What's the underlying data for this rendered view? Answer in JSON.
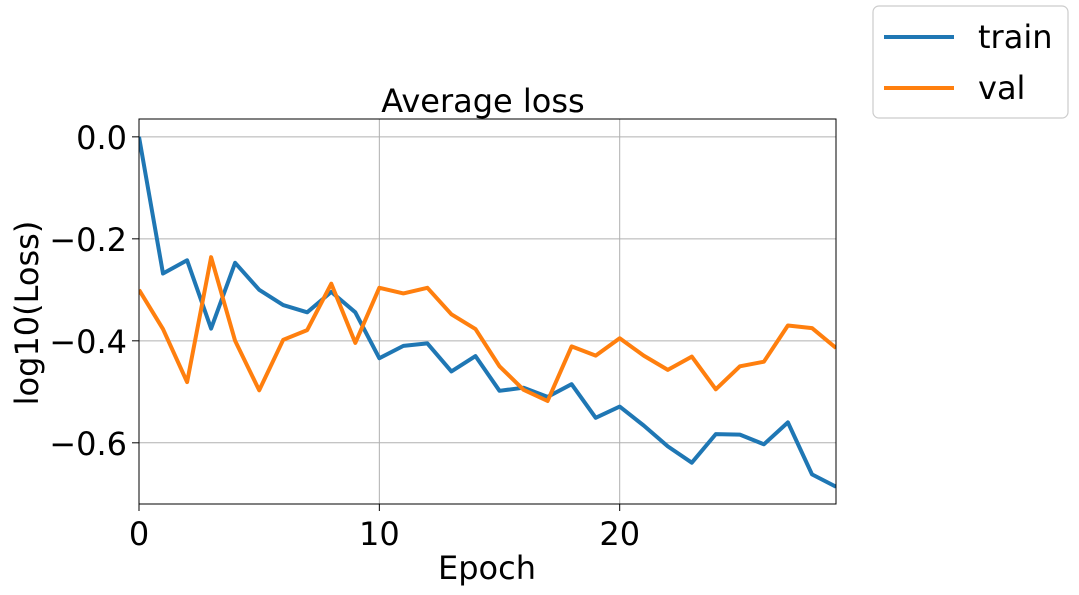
{
  "chart_data": {
    "type": "line",
    "title": "Average loss",
    "xlabel": "Epoch",
    "ylabel": "log10(Loss)",
    "xlim": [
      0,
      29
    ],
    "ylim": [
      -0.72,
      0.035
    ],
    "xticks": [
      0,
      10,
      20
    ],
    "yticks": [
      0.0,
      -0.2,
      -0.4,
      -0.6
    ],
    "xtick_labels": [
      "0",
      "10",
      "20"
    ],
    "ytick_labels": [
      "0.0",
      "−0.2",
      "−0.4",
      "−0.6"
    ],
    "grid": true,
    "legend_position": "outside-top-right",
    "x": [
      0,
      1,
      2,
      3,
      4,
      5,
      6,
      7,
      8,
      9,
      10,
      11,
      12,
      13,
      14,
      15,
      16,
      17,
      18,
      19,
      20,
      21,
      22,
      23,
      24,
      25,
      26,
      27,
      28,
      29
    ],
    "series": [
      {
        "name": "train",
        "color": "#1f77b4",
        "values": [
          0.0,
          -0.268,
          -0.242,
          -0.376,
          -0.247,
          -0.3,
          -0.33,
          -0.344,
          -0.304,
          -0.344,
          -0.434,
          -0.41,
          -0.405,
          -0.46,
          -0.43,
          -0.498,
          -0.492,
          -0.51,
          -0.485,
          -0.551,
          -0.529,
          -0.566,
          -0.607,
          -0.639,
          -0.583,
          -0.584,
          -0.603,
          -0.56,
          -0.662,
          -0.686
        ]
      },
      {
        "name": "val",
        "color": "#ff7f0e",
        "values": [
          -0.3,
          -0.377,
          -0.481,
          -0.236,
          -0.4,
          -0.497,
          -0.398,
          -0.379,
          -0.288,
          -0.404,
          -0.296,
          -0.307,
          -0.296,
          -0.348,
          -0.377,
          -0.45,
          -0.496,
          -0.518,
          -0.411,
          -0.429,
          -0.395,
          -0.429,
          -0.457,
          -0.431,
          -0.495,
          -0.45,
          -0.441,
          -0.37,
          -0.375,
          -0.414
        ]
      }
    ]
  }
}
